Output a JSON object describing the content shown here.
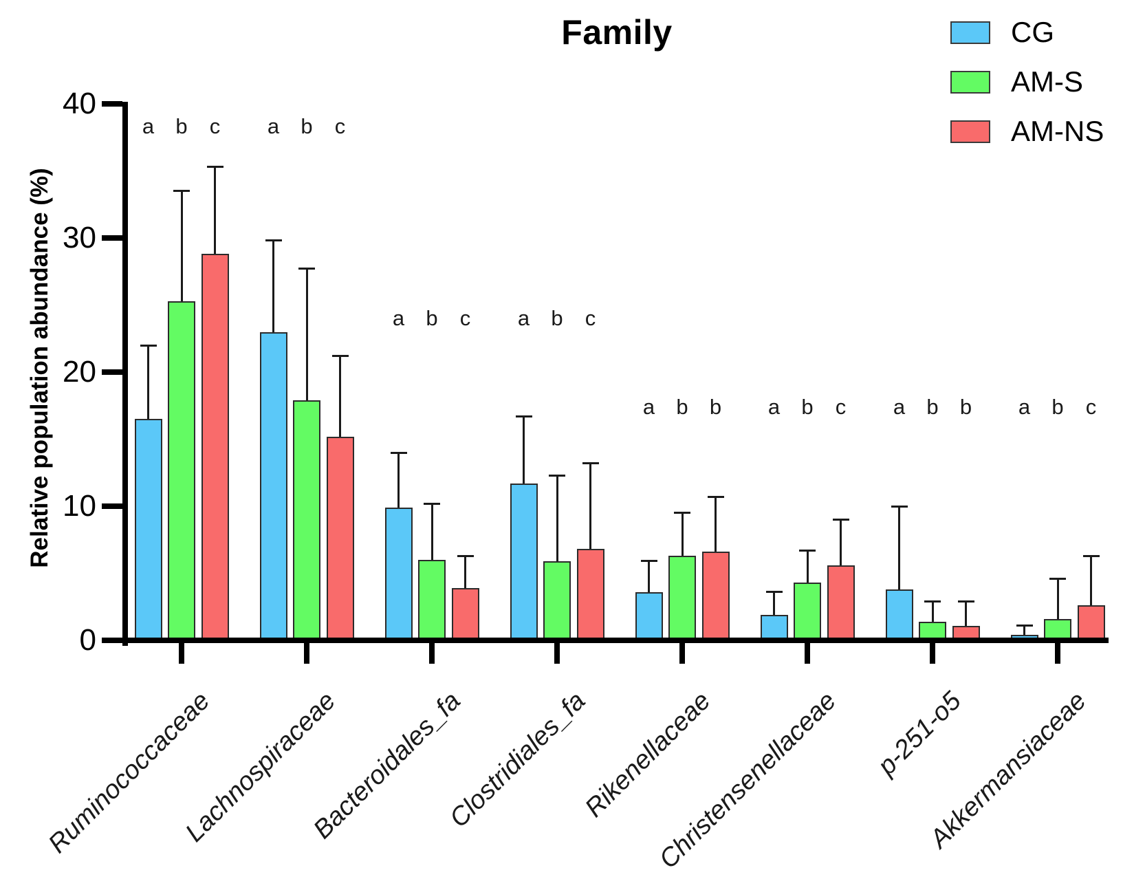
{
  "chart_data": {
    "type": "bar",
    "title": "Family",
    "ylabel": "Relative population abundance (%)",
    "xlabel": "",
    "ylim": [
      0,
      40
    ],
    "yticks": [
      0,
      10,
      20,
      30,
      40
    ],
    "grid": false,
    "legend_position": "top-right",
    "bar_outline_color": "#2b2b2b",
    "error_bar_color": "#1a1a1a",
    "error_bar_direction": "up-only",
    "categories": [
      "Ruminococcaceae",
      "Lachnospiraceae",
      "Bacteroidales_fa",
      "Clostridiales_fa",
      "Rikenellaceae",
      "Christensenellaceae",
      "p-251-o5",
      "Akkermansiaceae"
    ],
    "series": [
      {
        "name": "CG",
        "color": "#5BC8F8",
        "values": [
          16.5,
          23.0,
          9.9,
          11.7,
          3.6,
          1.9,
          3.8,
          0.4
        ],
        "errors": [
          5.5,
          6.8,
          4.1,
          5.0,
          2.3,
          1.7,
          6.2,
          0.7
        ]
      },
      {
        "name": "AM-S",
        "color": "#63FB63",
        "values": [
          25.3,
          17.9,
          6.0,
          5.9,
          6.3,
          4.3,
          1.4,
          1.6
        ],
        "errors": [
          8.2,
          9.8,
          4.2,
          6.4,
          3.2,
          2.4,
          1.5,
          3.0
        ]
      },
      {
        "name": "AM-NS",
        "color": "#F96B6B",
        "values": [
          28.8,
          15.2,
          3.9,
          6.8,
          6.6,
          5.6,
          1.1,
          2.6
        ],
        "errors": [
          6.5,
          6.0,
          2.4,
          6.4,
          4.1,
          3.4,
          1.8,
          3.7
        ]
      }
    ],
    "sig_letters": [
      {
        "letters": [
          "a",
          "b",
          "c"
        ],
        "y": 38.3
      },
      {
        "letters": [
          "a",
          "b",
          "c"
        ],
        "y": 38.3
      },
      {
        "letters": [
          "a",
          "b",
          "c"
        ],
        "y": 24.0
      },
      {
        "letters": [
          "a",
          "b",
          "c"
        ],
        "y": 24.0
      },
      {
        "letters": [
          "a",
          "b",
          "b"
        ],
        "y": 17.4
      },
      {
        "letters": [
          "a",
          "b",
          "c"
        ],
        "y": 17.4
      },
      {
        "letters": [
          "a",
          "b",
          "b"
        ],
        "y": 17.4
      },
      {
        "letters": [
          "a",
          "b",
          "c"
        ],
        "y": 17.4
      }
    ]
  }
}
